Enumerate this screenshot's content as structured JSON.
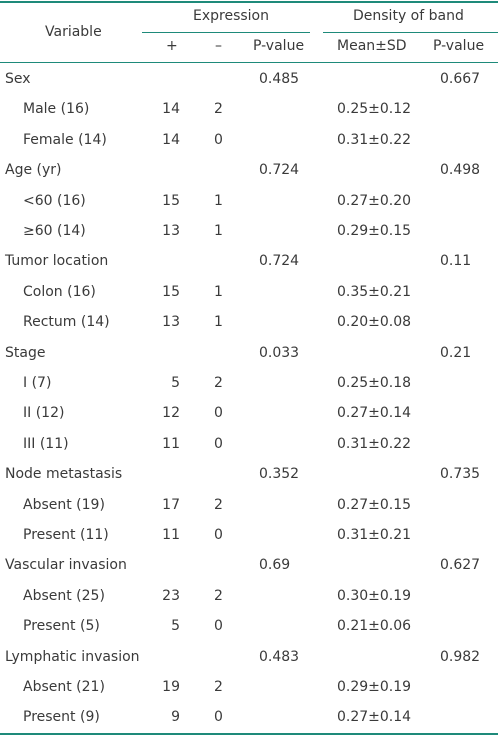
{
  "header": {
    "variable": "Variable",
    "expression": "Expression",
    "density": "Density of band",
    "plus": "+",
    "minus": "–",
    "pvalue1": "P-value",
    "mean_sd": "Mean±SD",
    "pvalue2": "P-value"
  },
  "rows": [
    {
      "label": "Sex",
      "group": true,
      "pv1": "0.485",
      "pv2": "0.667"
    },
    {
      "label": "Male (16)",
      "plus": "14",
      "minus": "2",
      "mean": "0.25±0.12"
    },
    {
      "label": "Female (14)",
      "plus": "14",
      "minus": "0",
      "mean": "0.31±0.22"
    },
    {
      "label": "Age (yr)",
      "group": true,
      "pv1": "0.724",
      "pv2": "0.498"
    },
    {
      "label": "<60 (16)",
      "plus": "15",
      "minus": "1",
      "mean": "0.27±0.20"
    },
    {
      "label": "≥60 (14)",
      "plus": "13",
      "minus": "1",
      "mean": "0.29±0.15"
    },
    {
      "label": "Tumor location",
      "group": true,
      "pv1": "0.724",
      "pv2": "0.11"
    },
    {
      "label": "Colon (16)",
      "plus": "15",
      "minus": "1",
      "mean": "0.35±0.21"
    },
    {
      "label": "Rectum (14)",
      "plus": "13",
      "minus": "1",
      "mean": "0.20±0.08"
    },
    {
      "label": "Stage",
      "group": true,
      "pv1": "0.033",
      "pv2": "0.21"
    },
    {
      "label": "I (7)",
      "plus": "5",
      "minus": "2",
      "mean": "0.25±0.18"
    },
    {
      "label": "II (12)",
      "plus": "12",
      "minus": "0",
      "mean": "0.27±0.14"
    },
    {
      "label": "III (11)",
      "plus": "11",
      "minus": "0",
      "mean": "0.31±0.22"
    },
    {
      "label": "Node metastasis",
      "group": true,
      "pv1": "0.352",
      "pv2": "0.735"
    },
    {
      "label": "Absent (19)",
      "plus": "17",
      "minus": "2",
      "mean": "0.27±0.15"
    },
    {
      "label": "Present (11)",
      "plus": "11",
      "minus": "0",
      "mean": "0.31±0.21"
    },
    {
      "label": "Vascular invasion",
      "group": true,
      "pv1": "0.69",
      "pv2": "0.627"
    },
    {
      "label": "Absent (25)",
      "plus": "23",
      "minus": "2",
      "mean": "0.30±0.19"
    },
    {
      "label": "Present (5)",
      "plus": "5",
      "minus": "0",
      "mean": "0.21±0.06"
    },
    {
      "label": "Lymphatic invasion",
      "group": true,
      "pv1": "0.483",
      "pv2": "0.982"
    },
    {
      "label": "Absent (21)",
      "plus": "19",
      "minus": "2",
      "mean": "0.29±0.19"
    },
    {
      "label": "Present (9)",
      "plus": "9",
      "minus": "0",
      "mean": "0.27±0.14"
    }
  ]
}
